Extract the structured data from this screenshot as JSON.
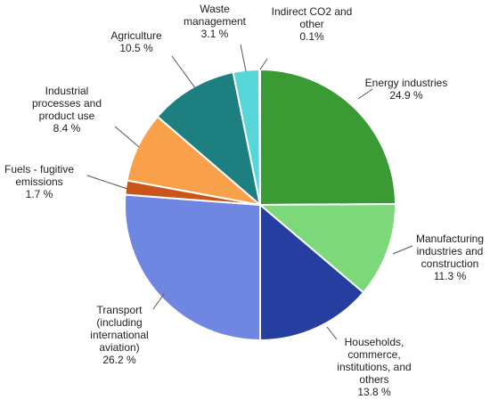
{
  "chart_data": {
    "type": "pie",
    "title": "",
    "start": "12 o'clock",
    "direction": "clockwise",
    "slices": [
      {
        "name": "Energy industries",
        "value": 24.9,
        "label": "24.9 %",
        "color": "#3a9b35"
      },
      {
        "name": "Manufacturing industries and construction",
        "value": 11.3,
        "label": "11.3 %",
        "color": "#7dd87a"
      },
      {
        "name": "Households, commerce, institutions, and others",
        "value": 13.8,
        "label": "13.8 %",
        "color": "#263ea0"
      },
      {
        "name": "Transport (including international aviation)",
        "value": 26.2,
        "label": "26.2 %",
        "color": "#6f87e0"
      },
      {
        "name": "Fuels - fugitive emissions",
        "value": 1.7,
        "label": "1.7 %",
        "color": "#c8561a"
      },
      {
        "name": "Industrial processes and product use",
        "value": 8.4,
        "label": "8.4 %",
        "color": "#f9a04a"
      },
      {
        "name": "Agriculture",
        "value": 10.5,
        "label": "10.5 %",
        "color": "#1e7f80"
      },
      {
        "name": "Waste management",
        "value": 3.1,
        "label": "3.1 %",
        "color": "#56d6d8"
      },
      {
        "name": "Indirect CO2 and other",
        "value": 0.1,
        "label": "0.1%",
        "color": "#d5e8bf"
      }
    ]
  }
}
